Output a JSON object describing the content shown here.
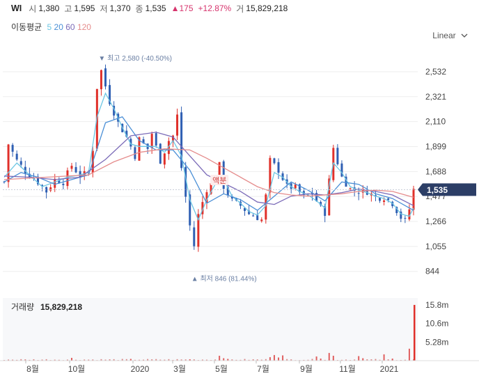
{
  "header": {
    "code": "WI",
    "open_label": "시",
    "open": "1,380",
    "high_label": "고",
    "high": "1,595",
    "low_label": "저",
    "low": "1,370",
    "close_label": "종",
    "close": "1,535",
    "change_arrow": "▲",
    "change": "175",
    "change_pct": "+12.87%",
    "volume_label": "거",
    "volume": "15,829,218"
  },
  "ma_legend": {
    "title": "이동평균",
    "items": [
      {
        "label": "5",
        "color": "#6cc6e3"
      },
      {
        "label": "20",
        "color": "#4a8fd6"
      },
      {
        "label": "60",
        "color": "#7b6bb8"
      },
      {
        "label": "120",
        "color": "#e58c8c"
      }
    ]
  },
  "scale_toggle": {
    "label": "Linear",
    "icon": "chevron-down-icon"
  },
  "volume_panel": {
    "label": "거래량",
    "value": "15,829,218"
  },
  "colors": {
    "up": "#e0302a",
    "down": "#2f5fb3",
    "current": "#2c3e66",
    "annotation": "#6a7fa3"
  },
  "chart_data": {
    "type": "candlestick",
    "y_ticks": [
      "2,532",
      "2,321",
      "2,110",
      "1,899",
      "1,688",
      "1,477",
      "1,266",
      "1,055",
      "844"
    ],
    "y_tick_values": [
      2532,
      2321,
      2110,
      1899,
      1688,
      1477,
      1266,
      1055,
      844
    ],
    "ylim": [
      760,
      2620
    ],
    "x_ticks": [
      "8월",
      "10월",
      "2020",
      "3월",
      "5월",
      "7월",
      "9월",
      "11월",
      "2021"
    ],
    "current_price": {
      "label": "1,535",
      "value": 1535
    },
    "annotations": {
      "high": {
        "marker": "▼",
        "text": "최고",
        "value": "2,580",
        "pct": "(-40.50%)",
        "price": 2580
      },
      "low": {
        "marker": "▲",
        "text": "최저",
        "value": "846",
        "pct": "(81.44%)",
        "price": 846
      },
      "split": {
        "text": "액분",
        "price": 1590
      }
    },
    "close_path": [
      [
        0,
        1600
      ],
      [
        1,
        1920
      ],
      [
        3,
        1780
      ],
      [
        5,
        1690
      ],
      [
        8,
        1600
      ],
      [
        10,
        1520
      ],
      [
        12,
        1620
      ],
      [
        14,
        1600
      ],
      [
        16,
        1740
      ],
      [
        18,
        1650
      ],
      [
        20,
        1680
      ],
      [
        21,
        1880
      ],
      [
        22,
        2400
      ],
      [
        23,
        2540
      ],
      [
        25,
        2280
      ],
      [
        27,
        2100
      ],
      [
        29,
        1980
      ],
      [
        31,
        1820
      ],
      [
        32,
        1960
      ],
      [
        34,
        1880
      ],
      [
        35,
        2010
      ],
      [
        37,
        1780
      ],
      [
        38,
        1860
      ],
      [
        39,
        1950
      ],
      [
        40,
        1990
      ],
      [
        41,
        2160
      ],
      [
        42,
        1720
      ],
      [
        44,
        1230
      ],
      [
        45,
        1060
      ],
      [
        46,
        1320
      ],
      [
        48,
        1540
      ],
      [
        50,
        1620
      ],
      [
        51,
        1740
      ],
      [
        52,
        1560
      ],
      [
        54,
        1440
      ],
      [
        56,
        1400
      ],
      [
        58,
        1330
      ],
      [
        60,
        1300
      ],
      [
        61,
        1280
      ],
      [
        62,
        1480
      ],
      [
        63,
        1780
      ],
      [
        65,
        1700
      ],
      [
        67,
        1560
      ],
      [
        69,
        1550
      ],
      [
        71,
        1470
      ],
      [
        73,
        1500
      ],
      [
        75,
        1380
      ],
      [
        76,
        1340
      ],
      [
        77,
        1610
      ],
      [
        78,
        1890
      ],
      [
        80,
        1640
      ],
      [
        82,
        1540
      ],
      [
        84,
        1520
      ],
      [
        86,
        1520
      ],
      [
        88,
        1470
      ],
      [
        90,
        1470
      ],
      [
        92,
        1420
      ],
      [
        94,
        1300
      ],
      [
        95,
        1270
      ],
      [
        96,
        1370
      ],
      [
        97,
        1535
      ]
    ],
    "moving_averages": [
      {
        "period": 5,
        "color": "#6cc6e3",
        "values": [
          [
            0,
            1640
          ],
          [
            3,
            1760
          ],
          [
            6,
            1660
          ],
          [
            9,
            1560
          ],
          [
            12,
            1600
          ],
          [
            15,
            1640
          ],
          [
            18,
            1660
          ],
          [
            20,
            1680
          ],
          [
            22,
            2150
          ],
          [
            24,
            2350
          ],
          [
            26,
            2220
          ],
          [
            28,
            2060
          ],
          [
            30,
            1920
          ],
          [
            32,
            1900
          ],
          [
            34,
            1900
          ],
          [
            36,
            1900
          ],
          [
            38,
            1850
          ],
          [
            40,
            1950
          ],
          [
            42,
            1820
          ],
          [
            44,
            1450
          ],
          [
            46,
            1280
          ],
          [
            48,
            1450
          ],
          [
            50,
            1580
          ],
          [
            52,
            1620
          ],
          [
            54,
            1480
          ],
          [
            56,
            1420
          ],
          [
            58,
            1350
          ],
          [
            60,
            1320
          ],
          [
            62,
            1400
          ],
          [
            64,
            1680
          ],
          [
            66,
            1640
          ],
          [
            68,
            1560
          ],
          [
            70,
            1520
          ],
          [
            72,
            1490
          ],
          [
            74,
            1440
          ],
          [
            76,
            1380
          ],
          [
            78,
            1760
          ],
          [
            80,
            1680
          ],
          [
            82,
            1560
          ],
          [
            84,
            1530
          ],
          [
            86,
            1510
          ],
          [
            88,
            1480
          ],
          [
            90,
            1460
          ],
          [
            92,
            1420
          ],
          [
            94,
            1330
          ],
          [
            96,
            1310
          ],
          [
            97,
            1380
          ]
        ]
      },
      {
        "period": 20,
        "color": "#4a8fd6",
        "values": [
          [
            0,
            1600
          ],
          [
            4,
            1680
          ],
          [
            8,
            1640
          ],
          [
            12,
            1580
          ],
          [
            16,
            1620
          ],
          [
            20,
            1660
          ],
          [
            24,
            2100
          ],
          [
            28,
            2150
          ],
          [
            32,
            1950
          ],
          [
            36,
            1870
          ],
          [
            40,
            1870
          ],
          [
            44,
            1700
          ],
          [
            48,
            1420
          ],
          [
            52,
            1500
          ],
          [
            56,
            1450
          ],
          [
            60,
            1360
          ],
          [
            64,
            1480
          ],
          [
            68,
            1600
          ],
          [
            72,
            1530
          ],
          [
            76,
            1440
          ],
          [
            80,
            1600
          ],
          [
            84,
            1580
          ],
          [
            88,
            1500
          ],
          [
            92,
            1460
          ],
          [
            97,
            1360
          ]
        ]
      },
      {
        "period": 60,
        "color": "#7b6bb8",
        "values": [
          [
            0,
            1650
          ],
          [
            6,
            1640
          ],
          [
            12,
            1620
          ],
          [
            18,
            1640
          ],
          [
            24,
            1790
          ],
          [
            30,
            1990
          ],
          [
            36,
            2020
          ],
          [
            40,
            1980
          ],
          [
            44,
            1820
          ],
          [
            48,
            1660
          ],
          [
            52,
            1590
          ],
          [
            56,
            1520
          ],
          [
            60,
            1430
          ],
          [
            64,
            1410
          ],
          [
            68,
            1480
          ],
          [
            72,
            1500
          ],
          [
            76,
            1490
          ],
          [
            80,
            1510
          ],
          [
            84,
            1540
          ],
          [
            88,
            1520
          ],
          [
            92,
            1490
          ],
          [
            97,
            1400
          ]
        ]
      },
      {
        "period": 120,
        "color": "#e58c8c",
        "values": [
          [
            0,
            1620
          ],
          [
            10,
            1640
          ],
          [
            20,
            1660
          ],
          [
            26,
            1770
          ],
          [
            32,
            1850
          ],
          [
            38,
            1880
          ],
          [
            44,
            1870
          ],
          [
            48,
            1800
          ],
          [
            52,
            1720
          ],
          [
            56,
            1640
          ],
          [
            60,
            1560
          ],
          [
            64,
            1510
          ],
          [
            68,
            1490
          ],
          [
            72,
            1480
          ],
          [
            76,
            1490
          ],
          [
            80,
            1500
          ],
          [
            84,
            1520
          ],
          [
            88,
            1530
          ],
          [
            92,
            1520
          ],
          [
            97,
            1470
          ]
        ]
      }
    ],
    "volume": {
      "ticks": [
        "15.8m",
        "10.6m",
        "5.28m"
      ],
      "tick_values": [
        15.8,
        10.6,
        5.28
      ],
      "last_value_m": 15.83,
      "spikes_m": [
        [
          16,
          0.8
        ],
        [
          30,
          0.5
        ],
        [
          44,
          0.4
        ],
        [
          51,
          1.4
        ],
        [
          52,
          0.7
        ],
        [
          53,
          0.5
        ],
        [
          63,
          1.0
        ],
        [
          64,
          1.6
        ],
        [
          65,
          0.9
        ],
        [
          66,
          1.5
        ],
        [
          74,
          1.2
        ],
        [
          75,
          0.6
        ],
        [
          77,
          2.2
        ],
        [
          78,
          1.4
        ],
        [
          84,
          1.3
        ],
        [
          85,
          0.7
        ],
        [
          90,
          1.8
        ],
        [
          92,
          0.6
        ],
        [
          96,
          3.4
        ]
      ]
    }
  }
}
